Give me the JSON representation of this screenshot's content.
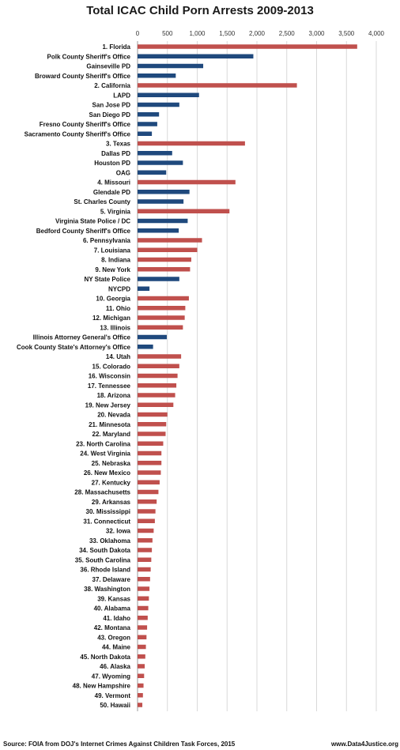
{
  "chart_data": {
    "type": "bar",
    "orientation": "horizontal",
    "title": "Total ICAC Child Porn Arrests 2009-2013",
    "xlim": [
      0,
      4000
    ],
    "xticks": [
      "0",
      "500",
      "1,000",
      "1,500",
      "2,000",
      "2,500",
      "3,000",
      "3,500",
      "4,000"
    ],
    "grid": true,
    "colors": {
      "state": "#c0504d",
      "agency": "#1f497d"
    },
    "categories": [
      "1. Florida",
      "Polk County Sheriff's Office",
      "Gainseville PD",
      "Broward County Sheriff's Office",
      "2. California",
      "LAPD",
      "San Jose PD",
      "San Diego PD",
      "Fresno County Sheriff's Office",
      "Sacramento County Sheriff's Office",
      "3. Texas",
      "Dallas PD",
      "Houston PD",
      "OAG",
      "4. Missouri",
      "Glendale PD",
      "St. Charles County",
      "5. Virginia",
      "Virginia State Police / DC",
      "Bedford County Sheriff's Office",
      "6. Pennsylvania",
      "7. Louisiana",
      "8. Indiana",
      "9. New York",
      "NY State Police",
      "NYCPD",
      "10. Georgia",
      "11. Ohio",
      "12. Michigan",
      "13. Illinois",
      "Illinois Attorney General's Office",
      "Cook County State's Attorney's Office",
      "14. Utah",
      "15. Colorado",
      "16. Wisconsin",
      "17. Tennessee",
      "18. Arizona",
      "19. New Jersey",
      "20. Nevada",
      "21. Minnesota",
      "22. Maryland",
      "23. North Carolina",
      "24. West Virginia",
      "25. Nebraska",
      "26. New Mexico",
      "27. Kentucky",
      "28. Massachusetts",
      "29. Arkansas",
      "30. Mississippi",
      "31. Connecticut",
      "32. Iowa",
      "33. Oklahoma",
      "34. South Dakota",
      "35. South Carolina",
      "36. Rhode Island",
      "37. Delaware",
      "38. Washington",
      "39. Kansas",
      "40. Alabama",
      "41. Idaho",
      "42. Montana",
      "43. Oregon",
      "44. Maine",
      "45. North Dakota",
      "46. Alaska",
      "47. Wyoming",
      "48. New Hampshire",
      "49. Vermont",
      "50. Hawaii"
    ],
    "values": [
      3680,
      1940,
      1100,
      640,
      2670,
      1030,
      700,
      360,
      330,
      240,
      1800,
      580,
      760,
      480,
      1640,
      870,
      770,
      1540,
      840,
      690,
      1080,
      1000,
      900,
      880,
      700,
      200,
      860,
      800,
      790,
      760,
      490,
      260,
      730,
      700,
      670,
      650,
      630,
      600,
      500,
      480,
      470,
      430,
      400,
      400,
      390,
      370,
      350,
      320,
      300,
      290,
      270,
      250,
      240,
      230,
      220,
      210,
      200,
      190,
      180,
      170,
      160,
      150,
      140,
      130,
      120,
      110,
      100,
      90,
      80
    ],
    "kinds": [
      "state",
      "agency",
      "agency",
      "agency",
      "state",
      "agency",
      "agency",
      "agency",
      "agency",
      "agency",
      "state",
      "agency",
      "agency",
      "agency",
      "state",
      "agency",
      "agency",
      "state",
      "agency",
      "agency",
      "state",
      "state",
      "state",
      "state",
      "agency",
      "agency",
      "state",
      "state",
      "state",
      "state",
      "agency",
      "agency",
      "state",
      "state",
      "state",
      "state",
      "state",
      "state",
      "state",
      "state",
      "state",
      "state",
      "state",
      "state",
      "state",
      "state",
      "state",
      "state",
      "state",
      "state",
      "state",
      "state",
      "state",
      "state",
      "state",
      "state",
      "state",
      "state",
      "state",
      "state",
      "state",
      "state",
      "state",
      "state",
      "state",
      "state",
      "state",
      "state",
      "state"
    ]
  },
  "footer": {
    "source": "Source: FOIA from DOJ's Internet Crimes Against Children Task Forces, 2015",
    "website": "www.Data4Justice.org"
  }
}
